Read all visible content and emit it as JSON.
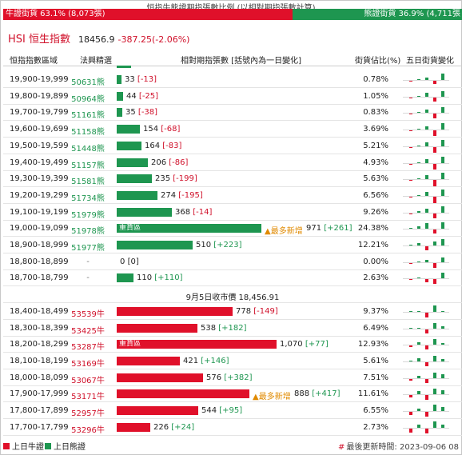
{
  "header": {
    "caption": "恒指牛熊證期指張數比例 (以相對期指張數計算)",
    "bull_label": "牛證街貨 63.1% (8,073張)",
    "bear_label": "熊證街貨 36.9% (4,711張",
    "bull_share": 0.631,
    "bull_color": "#e0102a",
    "bear_color": "#1e9650"
  },
  "index": {
    "name": "HSI 恒生指數",
    "value": "18456.9",
    "change": "-387.25(-2.06%)"
  },
  "table": {
    "columns": [
      "恒指指數區域",
      "法興精選",
      "相對期指張數 [括號內為一日變化]",
      "街貨佔比(%)",
      "五日街貨變化"
    ],
    "bear_rows": [
      {
        "range": "19,900-19,999",
        "code": "50631熊",
        "count": 33,
        "count_text": "33",
        "change": "[-13]",
        "change_sign": "neg",
        "pct": "0.78%",
        "tag": "",
        "note": "",
        "spark": [
          -0.1,
          0.15,
          0.3,
          -0.4,
          0.9
        ]
      },
      {
        "range": "19,800-19,899",
        "code": "50964熊",
        "count": 44,
        "count_text": "44",
        "change": "[-25]",
        "change_sign": "neg",
        "pct": "1.05%",
        "tag": "",
        "note": "",
        "spark": [
          -0.1,
          0.1,
          0.5,
          -0.5,
          0.8
        ]
      },
      {
        "range": "19,700-19,799",
        "code": "51161熊",
        "count": 35,
        "count_text": "35",
        "change": "[-38]",
        "change_sign": "neg",
        "pct": "0.83%",
        "tag": "",
        "note": "",
        "spark": [
          -0.1,
          0.1,
          0.4,
          -0.7,
          0.8
        ]
      },
      {
        "range": "19,600-19,699",
        "code": "51158熊",
        "count": 154,
        "count_text": "154",
        "change": "[-68]",
        "change_sign": "neg",
        "pct": "3.69%",
        "tag": "",
        "note": "",
        "spark": [
          -0.1,
          0.1,
          0.4,
          -0.8,
          0.9
        ]
      },
      {
        "range": "19,500-19,599",
        "code": "51448熊",
        "count": 164,
        "count_text": "164",
        "change": "[-83]",
        "change_sign": "neg",
        "pct": "5.21%",
        "tag": "",
        "note": "",
        "spark": [
          -0.1,
          0.1,
          0.5,
          -0.8,
          0.9
        ]
      },
      {
        "range": "19,400-19,499",
        "code": "51157熊",
        "count": 206,
        "count_text": "206",
        "change": "[-86]",
        "change_sign": "neg",
        "pct": "4.93%",
        "tag": "",
        "note": "",
        "spark": [
          -0.1,
          0.1,
          0.6,
          -0.8,
          0.9
        ]
      },
      {
        "range": "19,300-19,399",
        "code": "51581熊",
        "count": 235,
        "count_text": "235",
        "change": "[-199]",
        "change_sign": "neg",
        "pct": "5.63%",
        "tag": "",
        "note": "",
        "spark": [
          -0.1,
          0.1,
          0.6,
          -0.9,
          0.9
        ]
      },
      {
        "range": "19,200-19,299",
        "code": "51734熊",
        "count": 274,
        "count_text": "274",
        "change": "[-195]",
        "change_sign": "neg",
        "pct": "6.56%",
        "tag": "",
        "note": "",
        "spark": [
          -0.1,
          0.1,
          0.5,
          -0.9,
          0.9
        ]
      },
      {
        "range": "19,100-19,199",
        "code": "51979熊",
        "count": 368,
        "count_text": "368",
        "change": "[-14]",
        "change_sign": "neg",
        "pct": "9.26%",
        "tag": "",
        "note": "",
        "spark": [
          -0.1,
          0.2,
          0.6,
          -0.7,
          0.9
        ]
      },
      {
        "range": "19,000-19,099",
        "code": "51978熊",
        "count": 971,
        "count_text": "971",
        "change": "[+261]",
        "change_sign": "pos",
        "pct": "24.38%",
        "tag": "重貨區",
        "note": "最多新增",
        "spark": [
          0.1,
          0.3,
          0.8,
          -0.5,
          0.9
        ]
      },
      {
        "range": "18,900-18,999",
        "code": "51977熊",
        "count": 510,
        "count_text": "510",
        "change": "[+223]",
        "change_sign": "pos",
        "pct": "12.21%",
        "tag": "",
        "note": "",
        "spark": [
          0.1,
          0.3,
          -0.6,
          0.5,
          0.9
        ]
      },
      {
        "range": "18,800-18,899",
        "code": "-",
        "count": 0,
        "count_text": "0",
        "change": "[0]",
        "change_sign": "zero",
        "pct": "0.00%",
        "tag": "",
        "note": "",
        "spark": [
          -0.1,
          0.1,
          0.3,
          -0.7,
          0.7
        ]
      },
      {
        "range": "18,700-18,799",
        "code": "-",
        "count": 110,
        "count_text": "110",
        "change": "[+110]",
        "change_sign": "pos",
        "pct": "2.63%",
        "tag": "",
        "note": "",
        "spark": [
          -0.1,
          0.1,
          -0.4,
          -0.7,
          0.8
        ]
      }
    ],
    "close_label": "9月5日收市價 18,456.91",
    "bull_rows": [
      {
        "range": "18,400-18,499",
        "code": "53539牛",
        "count": 778,
        "count_text": "778",
        "change": "[-149]",
        "change_sign": "neg",
        "pct": "9.37%",
        "tag": "",
        "note": "",
        "spark": [
          0.0,
          0.0,
          -0.7,
          0.9,
          0.0
        ]
      },
      {
        "range": "18,300-18,399",
        "code": "53425牛",
        "count": 538,
        "count_text": "538",
        "change": "[+182]",
        "change_sign": "pos",
        "pct": "6.49%",
        "tag": "",
        "note": "",
        "spark": [
          0.0,
          0.0,
          -0.6,
          0.8,
          0.3
        ]
      },
      {
        "range": "18,200-18,299",
        "code": "53287牛",
        "count": 1070,
        "count_text": "1,070",
        "change": "[+77]",
        "change_sign": "pos",
        "pct": "12.93%",
        "tag": "重貨區",
        "note": "",
        "spark": [
          -0.2,
          0.3,
          -0.6,
          0.8,
          0.2
        ]
      },
      {
        "range": "18,100-18,199",
        "code": "53169牛",
        "count": 421,
        "count_text": "421",
        "change": "[+146]",
        "change_sign": "pos",
        "pct": "5.61%",
        "tag": "",
        "note": "",
        "spark": [
          0.1,
          0.4,
          -0.6,
          0.8,
          0.3
        ]
      },
      {
        "range": "18,000-18,099",
        "code": "53067牛",
        "count": 576,
        "count_text": "576",
        "change": "[+382]",
        "change_sign": "pos",
        "pct": "7.51%",
        "tag": "",
        "note": "",
        "spark": [
          -0.2,
          0.3,
          -0.6,
          0.8,
          0.5
        ]
      },
      {
        "range": "17,900-17,999",
        "code": "53171牛",
        "count": 888,
        "count_text": "888",
        "change": "[+417]",
        "change_sign": "pos",
        "pct": "11.61%",
        "tag": "",
        "note": "最多新增",
        "spark": [
          -0.3,
          0.4,
          -0.7,
          0.8,
          0.6
        ]
      },
      {
        "range": "17,800-17,899",
        "code": "52957牛",
        "count": 544,
        "count_text": "544",
        "change": "[+95]",
        "change_sign": "pos",
        "pct": "6.55%",
        "tag": "",
        "note": "",
        "spark": [
          -0.4,
          0.3,
          -0.7,
          0.9,
          0.5
        ]
      },
      {
        "range": "17,700-17,799",
        "code": "53296牛",
        "count": 226,
        "count_text": "226",
        "change": "[+24]",
        "change_sign": "pos",
        "pct": "2.73%",
        "tag": "",
        "note": "",
        "spark": [
          -0.6,
          0.4,
          -0.7,
          0.9,
          0.4
        ]
      }
    ],
    "max_count": 1070
  },
  "legend": {
    "bull": "上日牛證",
    "bear": "上日熊證",
    "update_mark": "#",
    "update_text": "最後更新時間: 2023-09-06 08"
  }
}
